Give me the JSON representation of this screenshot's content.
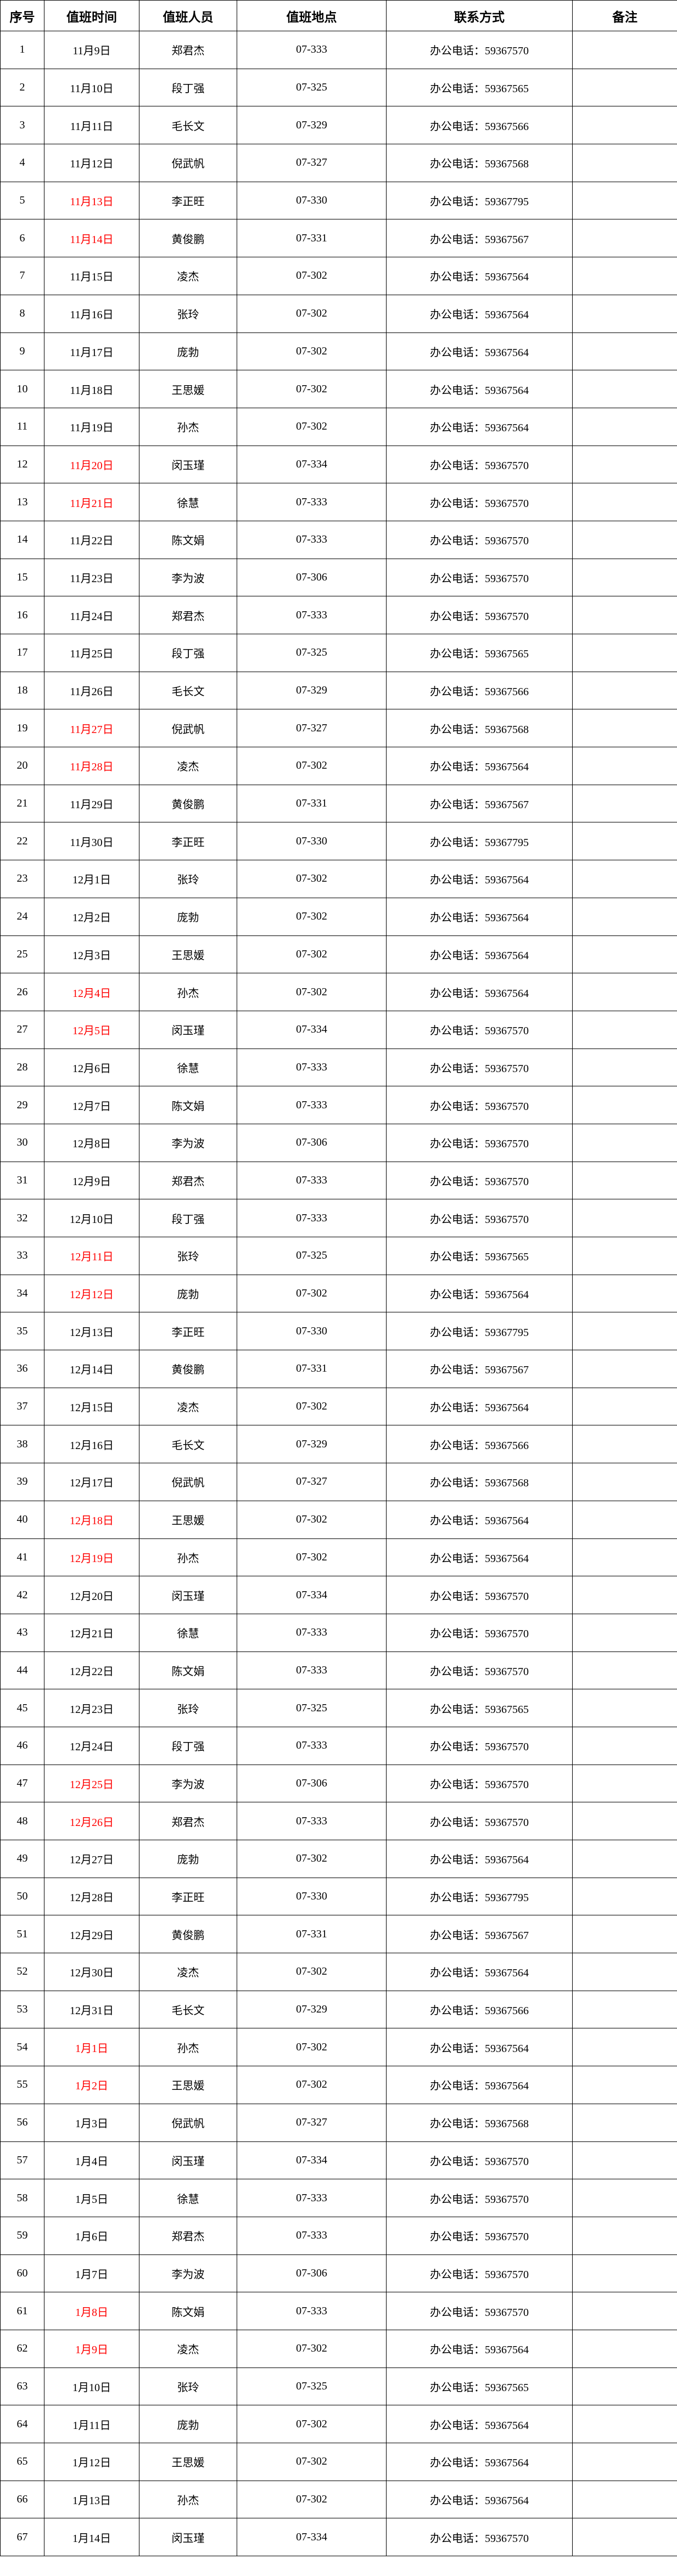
{
  "headers": [
    "序号",
    "值班时间",
    "值班人员",
    "值班地点",
    "联系方式",
    "备注"
  ],
  "holiday_color": "#ff0000",
  "rows": [
    {
      "no": "1",
      "date": "11月9日",
      "name": "郑君杰",
      "place": "07-333",
      "contact": "办公电话：59367570",
      "note": "",
      "holiday": false
    },
    {
      "no": "2",
      "date": "11月10日",
      "name": "段丁强",
      "place": "07-325",
      "contact": "办公电话：59367565",
      "note": "",
      "holiday": false
    },
    {
      "no": "3",
      "date": "11月11日",
      "name": "毛长文",
      "place": "07-329",
      "contact": "办公电话：59367566",
      "note": "",
      "holiday": false
    },
    {
      "no": "4",
      "date": "11月12日",
      "name": "倪武帆",
      "place": "07-327",
      "contact": "办公电话：59367568",
      "note": "",
      "holiday": false
    },
    {
      "no": "5",
      "date": "11月13日",
      "name": "李正旺",
      "place": "07-330",
      "contact": "办公电话：59367795",
      "note": "",
      "holiday": true
    },
    {
      "no": "6",
      "date": "11月14日",
      "name": "黄俊鹏",
      "place": "07-331",
      "contact": "办公电话：59367567",
      "note": "",
      "holiday": true
    },
    {
      "no": "7",
      "date": "11月15日",
      "name": "凌杰",
      "place": "07-302",
      "contact": "办公电话：59367564",
      "note": "",
      "holiday": false
    },
    {
      "no": "8",
      "date": "11月16日",
      "name": "张玲",
      "place": "07-302",
      "contact": "办公电话：59367564",
      "note": "",
      "holiday": false
    },
    {
      "no": "9",
      "date": "11月17日",
      "name": "庞勃",
      "place": "07-302",
      "contact": "办公电话：59367564",
      "note": "",
      "holiday": false
    },
    {
      "no": "10",
      "date": "11月18日",
      "name": "王思媛",
      "place": "07-302",
      "contact": "办公电话：59367564",
      "note": "",
      "holiday": false
    },
    {
      "no": "11",
      "date": "11月19日",
      "name": "孙杰",
      "place": "07-302",
      "contact": "办公电话：59367564",
      "note": "",
      "holiday": false
    },
    {
      "no": "12",
      "date": "11月20日",
      "name": "闵玉瑾",
      "place": "07-334",
      "contact": "办公电话：59367570",
      "note": "",
      "holiday": true
    },
    {
      "no": "13",
      "date": "11月21日",
      "name": "徐慧",
      "place": "07-333",
      "contact": "办公电话：59367570",
      "note": "",
      "holiday": true
    },
    {
      "no": "14",
      "date": "11月22日",
      "name": "陈文娟",
      "place": "07-333",
      "contact": "办公电话：59367570",
      "note": "",
      "holiday": false
    },
    {
      "no": "15",
      "date": "11月23日",
      "name": "李为波",
      "place": "07-306",
      "contact": "办公电话：59367570",
      "note": "",
      "holiday": false
    },
    {
      "no": "16",
      "date": "11月24日",
      "name": "郑君杰",
      "place": "07-333",
      "contact": "办公电话：59367570",
      "note": "",
      "holiday": false
    },
    {
      "no": "17",
      "date": "11月25日",
      "name": "段丁强",
      "place": "07-325",
      "contact": "办公电话：59367565",
      "note": "",
      "holiday": false
    },
    {
      "no": "18",
      "date": "11月26日",
      "name": "毛长文",
      "place": "07-329",
      "contact": "办公电话：59367566",
      "note": "",
      "holiday": false
    },
    {
      "no": "19",
      "date": "11月27日",
      "name": "倪武帆",
      "place": "07-327",
      "contact": "办公电话：59367568",
      "note": "",
      "holiday": true
    },
    {
      "no": "20",
      "date": "11月28日",
      "name": "凌杰",
      "place": "07-302",
      "contact": "办公电话：59367564",
      "note": "",
      "holiday": true
    },
    {
      "no": "21",
      "date": "11月29日",
      "name": "黄俊鹏",
      "place": "07-331",
      "contact": "办公电话：59367567",
      "note": "",
      "holiday": false
    },
    {
      "no": "22",
      "date": "11月30日",
      "name": "李正旺",
      "place": "07-330",
      "contact": "办公电话：59367795",
      "note": "",
      "holiday": false
    },
    {
      "no": "23",
      "date": "12月1日",
      "name": "张玲",
      "place": "07-302",
      "contact": "办公电话：59367564",
      "note": "",
      "holiday": false
    },
    {
      "no": "24",
      "date": "12月2日",
      "name": "庞勃",
      "place": "07-302",
      "contact": "办公电话：59367564",
      "note": "",
      "holiday": false
    },
    {
      "no": "25",
      "date": "12月3日",
      "name": "王思媛",
      "place": "07-302",
      "contact": "办公电话：59367564",
      "note": "",
      "holiday": false
    },
    {
      "no": "26",
      "date": "12月4日",
      "name": "孙杰",
      "place": "07-302",
      "contact": "办公电话：59367564",
      "note": "",
      "holiday": true
    },
    {
      "no": "27",
      "date": "12月5日",
      "name": "闵玉瑾",
      "place": "07-334",
      "contact": "办公电话：59367570",
      "note": "",
      "holiday": true
    },
    {
      "no": "28",
      "date": "12月6日",
      "name": "徐慧",
      "place": "07-333",
      "contact": "办公电话：59367570",
      "note": "",
      "holiday": false
    },
    {
      "no": "29",
      "date": "12月7日",
      "name": "陈文娟",
      "place": "07-333",
      "contact": "办公电话：59367570",
      "note": "",
      "holiday": false
    },
    {
      "no": "30",
      "date": "12月8日",
      "name": "李为波",
      "place": "07-306",
      "contact": "办公电话：59367570",
      "note": "",
      "holiday": false
    },
    {
      "no": "31",
      "date": "12月9日",
      "name": "郑君杰",
      "place": "07-333",
      "contact": "办公电话：59367570",
      "note": "",
      "holiday": false
    },
    {
      "no": "32",
      "date": "12月10日",
      "name": "段丁强",
      "place": "07-333",
      "contact": "办公电话：59367570",
      "note": "",
      "holiday": false
    },
    {
      "no": "33",
      "date": "12月11日",
      "name": "张玲",
      "place": "07-325",
      "contact": "办公电话：59367565",
      "note": "",
      "holiday": true
    },
    {
      "no": "34",
      "date": "12月12日",
      "name": "庞勃",
      "place": "07-302",
      "contact": "办公电话：59367564",
      "note": "",
      "holiday": true
    },
    {
      "no": "35",
      "date": "12月13日",
      "name": "李正旺",
      "place": "07-330",
      "contact": "办公电话：59367795",
      "note": "",
      "holiday": false
    },
    {
      "no": "36",
      "date": "12月14日",
      "name": "黄俊鹏",
      "place": "07-331",
      "contact": "办公电话：59367567",
      "note": "",
      "holiday": false
    },
    {
      "no": "37",
      "date": "12月15日",
      "name": "凌杰",
      "place": "07-302",
      "contact": "办公电话：59367564",
      "note": "",
      "holiday": false
    },
    {
      "no": "38",
      "date": "12月16日",
      "name": "毛长文",
      "place": "07-329",
      "contact": "办公电话：59367566",
      "note": "",
      "holiday": false
    },
    {
      "no": "39",
      "date": "12月17日",
      "name": "倪武帆",
      "place": "07-327",
      "contact": "办公电话：59367568",
      "note": "",
      "holiday": false
    },
    {
      "no": "40",
      "date": "12月18日",
      "name": "王思媛",
      "place": "07-302",
      "contact": "办公电话：59367564",
      "note": "",
      "holiday": true
    },
    {
      "no": "41",
      "date": "12月19日",
      "name": "孙杰",
      "place": "07-302",
      "contact": "办公电话：59367564",
      "note": "",
      "holiday": true
    },
    {
      "no": "42",
      "date": "12月20日",
      "name": "闵玉瑾",
      "place": "07-334",
      "contact": "办公电话：59367570",
      "note": "",
      "holiday": false
    },
    {
      "no": "43",
      "date": "12月21日",
      "name": "徐慧",
      "place": "07-333",
      "contact": "办公电话：59367570",
      "note": "",
      "holiday": false
    },
    {
      "no": "44",
      "date": "12月22日",
      "name": "陈文娟",
      "place": "07-333",
      "contact": "办公电话：59367570",
      "note": "",
      "holiday": false
    },
    {
      "no": "45",
      "date": "12月23日",
      "name": "张玲",
      "place": "07-325",
      "contact": "办公电话：59367565",
      "note": "",
      "holiday": false
    },
    {
      "no": "46",
      "date": "12月24日",
      "name": "段丁强",
      "place": "07-333",
      "contact": "办公电话：59367570",
      "note": "",
      "holiday": false
    },
    {
      "no": "47",
      "date": "12月25日",
      "name": "李为波",
      "place": "07-306",
      "contact": "办公电话：59367570",
      "note": "",
      "holiday": true
    },
    {
      "no": "48",
      "date": "12月26日",
      "name": "郑君杰",
      "place": "07-333",
      "contact": "办公电话：59367570",
      "note": "",
      "holiday": true
    },
    {
      "no": "49",
      "date": "12月27日",
      "name": "庞勃",
      "place": "07-302",
      "contact": "办公电话：59367564",
      "note": "",
      "holiday": false
    },
    {
      "no": "50",
      "date": "12月28日",
      "name": "李正旺",
      "place": "07-330",
      "contact": "办公电话：59367795",
      "note": "",
      "holiday": false
    },
    {
      "no": "51",
      "date": "12月29日",
      "name": "黄俊鹏",
      "place": "07-331",
      "contact": "办公电话：59367567",
      "note": "",
      "holiday": false
    },
    {
      "no": "52",
      "date": "12月30日",
      "name": "凌杰",
      "place": "07-302",
      "contact": "办公电话：59367564",
      "note": "",
      "holiday": false
    },
    {
      "no": "53",
      "date": "12月31日",
      "name": "毛长文",
      "place": "07-329",
      "contact": "办公电话：59367566",
      "note": "",
      "holiday": false
    },
    {
      "no": "54",
      "date": "1月1日",
      "name": "孙杰",
      "place": "07-302",
      "contact": "办公电话：59367564",
      "note": "",
      "holiday": true
    },
    {
      "no": "55",
      "date": "1月2日",
      "name": "王思媛",
      "place": "07-302",
      "contact": "办公电话：59367564",
      "note": "",
      "holiday": true
    },
    {
      "no": "56",
      "date": "1月3日",
      "name": "倪武帆",
      "place": "07-327",
      "contact": "办公电话：59367568",
      "note": "",
      "holiday": false
    },
    {
      "no": "57",
      "date": "1月4日",
      "name": "闵玉瑾",
      "place": "07-334",
      "contact": "办公电话：59367570",
      "note": "",
      "holiday": false
    },
    {
      "no": "58",
      "date": "1月5日",
      "name": "徐慧",
      "place": "07-333",
      "contact": "办公电话：59367570",
      "note": "",
      "holiday": false
    },
    {
      "no": "59",
      "date": "1月6日",
      "name": "郑君杰",
      "place": "07-333",
      "contact": "办公电话：59367570",
      "note": "",
      "holiday": false
    },
    {
      "no": "60",
      "date": "1月7日",
      "name": "李为波",
      "place": "07-306",
      "contact": "办公电话：59367570",
      "note": "",
      "holiday": false
    },
    {
      "no": "61",
      "date": "1月8日",
      "name": "陈文娟",
      "place": "07-333",
      "contact": "办公电话：59367570",
      "note": "",
      "holiday": true
    },
    {
      "no": "62",
      "date": "1月9日",
      "name": "凌杰",
      "place": "07-302",
      "contact": "办公电话：59367564",
      "note": "",
      "holiday": true
    },
    {
      "no": "63",
      "date": "1月10日",
      "name": "张玲",
      "place": "07-325",
      "contact": "办公电话：59367565",
      "note": "",
      "holiday": false
    },
    {
      "no": "64",
      "date": "1月11日",
      "name": "庞勃",
      "place": "07-302",
      "contact": "办公电话：59367564",
      "note": "",
      "holiday": false
    },
    {
      "no": "65",
      "date": "1月12日",
      "name": "王思媛",
      "place": "07-302",
      "contact": "办公电话：59367564",
      "note": "",
      "holiday": false
    },
    {
      "no": "66",
      "date": "1月13日",
      "name": "孙杰",
      "place": "07-302",
      "contact": "办公电话：59367564",
      "note": "",
      "holiday": false
    },
    {
      "no": "67",
      "date": "1月14日",
      "name": "闵玉瑾",
      "place": "07-334",
      "contact": "办公电话：59367570",
      "note": "",
      "holiday": false
    }
  ]
}
